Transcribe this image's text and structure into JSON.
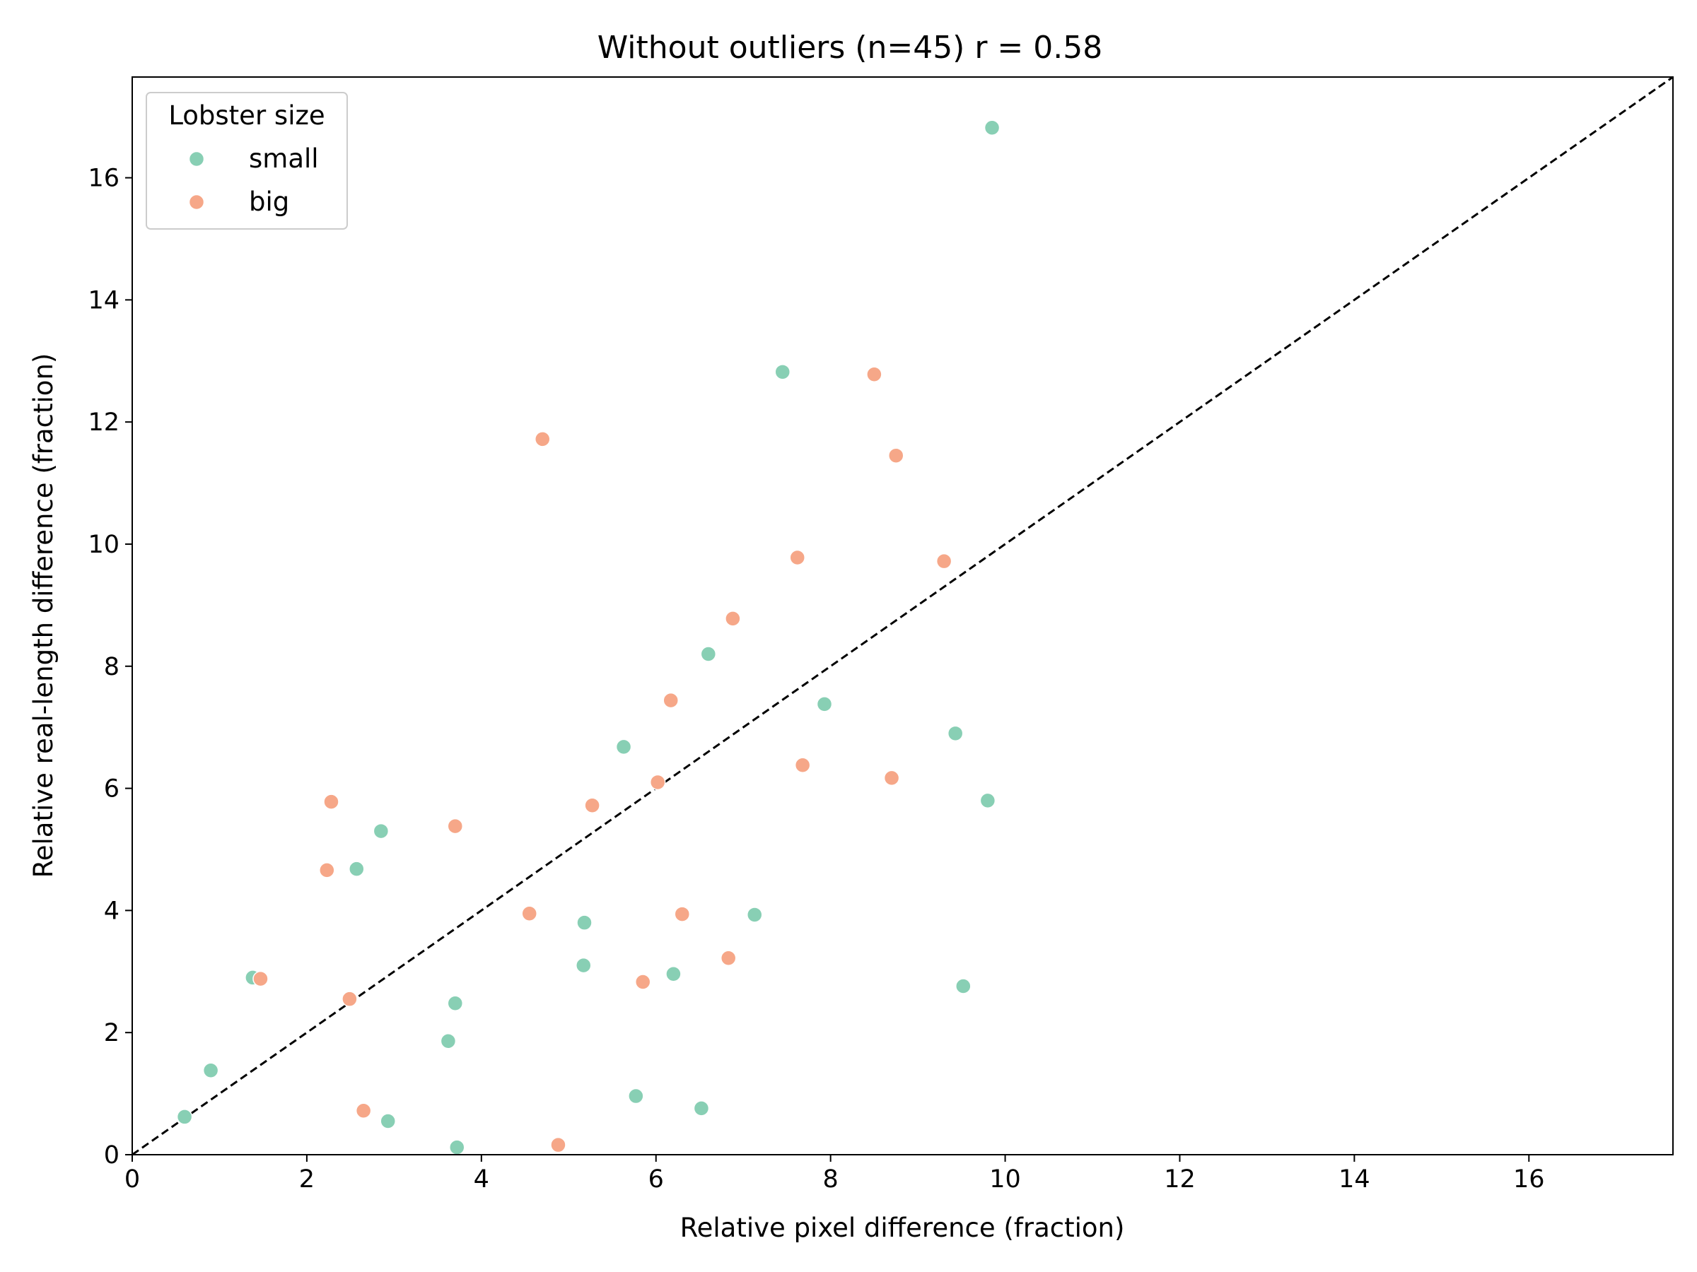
{
  "chart_data": {
    "type": "scatter",
    "title": "Without outliers (n=45)  r = 0.58",
    "xlabel": "Relative pixel difference (fraction)",
    "ylabel": "Relative real-length difference (fraction)",
    "xlim": [
      0,
      17.65
    ],
    "ylim": [
      0,
      17.65
    ],
    "xticks": [
      "0",
      "2",
      "4",
      "6",
      "8",
      "10",
      "12",
      "14",
      "16"
    ],
    "yticks": [
      "0",
      "2",
      "4",
      "6",
      "8",
      "10",
      "12",
      "14",
      "16"
    ],
    "grid": false,
    "legend": {
      "title": "Lobster size",
      "placement": "top-left"
    },
    "reference_line": {
      "style": "dashed",
      "from": [
        0,
        0
      ],
      "to": [
        17.65,
        17.65
      ],
      "color": "#000000"
    },
    "series": [
      {
        "name": "small",
        "color": "#88cfb4",
        "points": [
          [
            0.6,
            0.62
          ],
          [
            0.9,
            1.38
          ],
          [
            1.38,
            2.9
          ],
          [
            2.57,
            4.68
          ],
          [
            2.85,
            5.3
          ],
          [
            2.93,
            0.55
          ],
          [
            3.62,
            1.86
          ],
          [
            3.7,
            2.48
          ],
          [
            3.72,
            0.12
          ],
          [
            5.17,
            3.1
          ],
          [
            5.18,
            3.8
          ],
          [
            5.63,
            6.68
          ],
          [
            5.77,
            0.96
          ],
          [
            6.2,
            2.96
          ],
          [
            6.52,
            0.76
          ],
          [
            6.6,
            8.2
          ],
          [
            7.13,
            3.93
          ],
          [
            7.45,
            12.82
          ],
          [
            7.93,
            7.38
          ],
          [
            9.43,
            6.9
          ],
          [
            9.52,
            2.76
          ],
          [
            9.8,
            5.8
          ],
          [
            9.85,
            16.82
          ]
        ]
      },
      {
        "name": "big",
        "color": "#f6a788",
        "points": [
          [
            1.47,
            2.88
          ],
          [
            2.23,
            4.66
          ],
          [
            2.28,
            5.78
          ],
          [
            2.49,
            2.55
          ],
          [
            2.65,
            0.72
          ],
          [
            3.7,
            5.38
          ],
          [
            4.55,
            3.95
          ],
          [
            4.7,
            11.72
          ],
          [
            4.88,
            0.16
          ],
          [
            5.27,
            5.72
          ],
          [
            5.85,
            2.83
          ],
          [
            6.02,
            6.1
          ],
          [
            6.17,
            7.44
          ],
          [
            6.3,
            3.94
          ],
          [
            6.83,
            3.22
          ],
          [
            6.88,
            8.78
          ],
          [
            7.62,
            9.78
          ],
          [
            7.68,
            6.38
          ],
          [
            8.5,
            12.78
          ],
          [
            8.7,
            6.17
          ],
          [
            8.75,
            11.45
          ],
          [
            9.3,
            9.72
          ]
        ]
      }
    ]
  }
}
